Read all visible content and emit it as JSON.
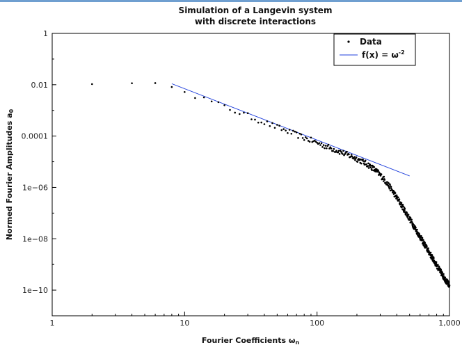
{
  "chart_data": {
    "type": "scatter",
    "title": [
      "Simulation of a Langevin system",
      "with discrete interactions"
    ],
    "xlabel": "Fourier Coefficients ω",
    "xlabel_sub": "n",
    "ylabel": "Normed Fourier Amplitudes a",
    "ylabel_sub": "0",
    "xscale": "log",
    "yscale": "log",
    "xlim": [
      1,
      1000
    ],
    "ylim": [
      1e-11,
      1
    ],
    "x_ticks": [
      1,
      10,
      100,
      1000
    ],
    "x_tick_labels": [
      "1",
      "10",
      "100",
      "1,000"
    ],
    "y_ticks": [
      1,
      0.01,
      0.0001,
      1e-06,
      1e-08,
      1e-10
    ],
    "y_tick_labels": [
      "1",
      "0.01",
      "0.0001",
      "1e−06",
      "1e−08",
      "1e−10"
    ],
    "grid": false,
    "legend_position": "top-right",
    "colors": {
      "data": "#000000",
      "fit": "#1f3fdc",
      "frame": "#000000"
    },
    "series": [
      {
        "name": "Data",
        "style": "points",
        "spectrum_model": {
          "n_min": 2,
          "n_max": 1000,
          "step": 2,
          "low_plateau": 0.011,
          "power_law_exponent": -2,
          "power_law_amplitude": 0.55,
          "cutoff_frequency": 300,
          "cutoff_order": 7,
          "noise_floor": 2.5e-11,
          "noise_floor_exponent": -2.4,
          "floor_reference": 1000
        }
      },
      {
        "name": "f(x) = ω",
        "name_sup": "-2",
        "style": "line",
        "amplitude": 0.7,
        "exponent": -2,
        "x_range": [
          8,
          500
        ]
      }
    ]
  }
}
